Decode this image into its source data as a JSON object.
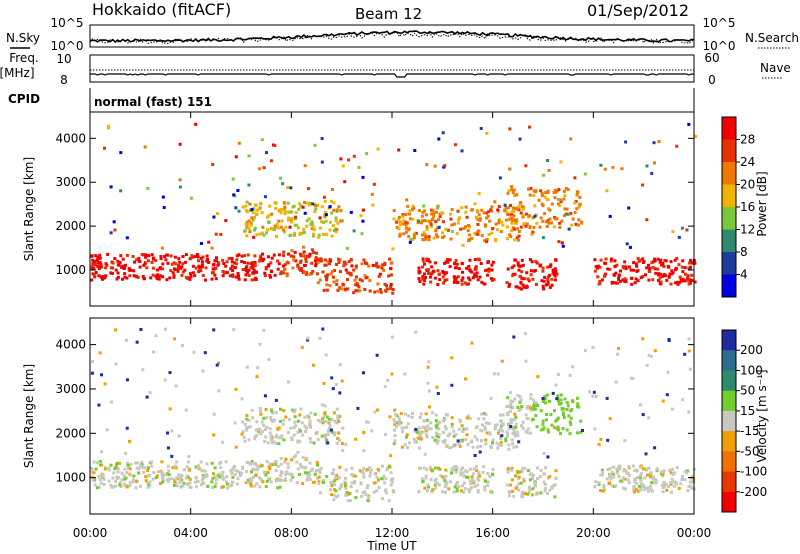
{
  "header": {
    "station": "Hokkaido (fitACF)",
    "beam": "Beam 12",
    "date": "01/Sep/2012"
  },
  "strip_labels": {
    "nsky": "N.Sky",
    "nsearch": "N.Search",
    "freq_line1": "Freq.",
    "freq_line2": "[MHz]",
    "nave": "Nave",
    "cpid": "CPID",
    "cpid_value": "normal (fast) 151"
  },
  "strip_ticks": {
    "noise_top": "10^5",
    "noise_bottom": "10^0",
    "freq_top": "10",
    "freq_bottom": "8",
    "nave_top": "60",
    "nave_bottom": "0"
  },
  "chart_data": [
    {
      "type": "heatmap",
      "name": "power-panel",
      "xlabel": "Time UT",
      "ylabel": "Slant Range [km]",
      "xlim": [
        "00:00",
        "24:00"
      ],
      "ylim": [
        180,
        4600
      ],
      "ytick_labels": [
        "1000",
        "2000",
        "3000",
        "4000"
      ],
      "colorbar": {
        "label": "Power [dB]",
        "tick_labels": [
          "4",
          "8",
          "12",
          "16",
          "20",
          "24",
          "28"
        ],
        "colors": [
          "#0000e0",
          "#1c3c9c",
          "#2e8a6c",
          "#7ac83c",
          "#f0b400",
          "#f07800",
          "#e83000",
          "#f00000"
        ]
      },
      "echo_bands": [
        {
          "t": [
            0,
            7.5
          ],
          "r": [
            800,
            1400
          ],
          "level": 7
        },
        {
          "t": [
            7.5,
            9
          ],
          "r": [
            900,
            1500
          ],
          "level": 6
        },
        {
          "t": [
            9,
            12
          ],
          "r": [
            500,
            1300
          ],
          "level": 6
        },
        {
          "t": [
            13,
            16
          ],
          "r": [
            700,
            1300
          ],
          "level": 7
        },
        {
          "t": [
            16.5,
            18.5
          ],
          "r": [
            600,
            1300
          ],
          "level": 7
        },
        {
          "t": [
            20,
            24
          ],
          "r": [
            700,
            1300
          ],
          "level": 7
        },
        {
          "t": [
            6,
            10
          ],
          "r": [
            1800,
            2600
          ],
          "level": 4
        },
        {
          "t": [
            12,
            17
          ],
          "r": [
            1700,
            2500
          ],
          "level": 5
        },
        {
          "t": [
            16.5,
            19.5
          ],
          "r": [
            2000,
            2900
          ],
          "level": 5
        }
      ]
    },
    {
      "type": "heatmap",
      "name": "velocity-panel",
      "xlabel": "Time UT",
      "ylabel": "Slant Range [km]",
      "xlim": [
        "00:00",
        "24:00"
      ],
      "ylim": [
        180,
        4600
      ],
      "ytick_labels": [
        "1000",
        "2000",
        "3000",
        "4000"
      ],
      "colorbar": {
        "label": "Velocity [m s⁻¹]",
        "tick_labels": [
          "200",
          "100",
          "50",
          "15",
          "-15",
          "-50",
          "-100",
          "-200"
        ],
        "colors": [
          "#1c2ca0",
          "#2c6c8c",
          "#2e8a6c",
          "#72cc2c",
          "#c8c8c0",
          "#f0a000",
          "#f07000",
          "#e83800",
          "#f00000"
        ]
      }
    }
  ],
  "xaxis": {
    "label": "Time UT",
    "ticks": [
      "00:00",
      "04:00",
      "08:00",
      "12:00",
      "16:00",
      "20:00",
      "00:00"
    ]
  }
}
